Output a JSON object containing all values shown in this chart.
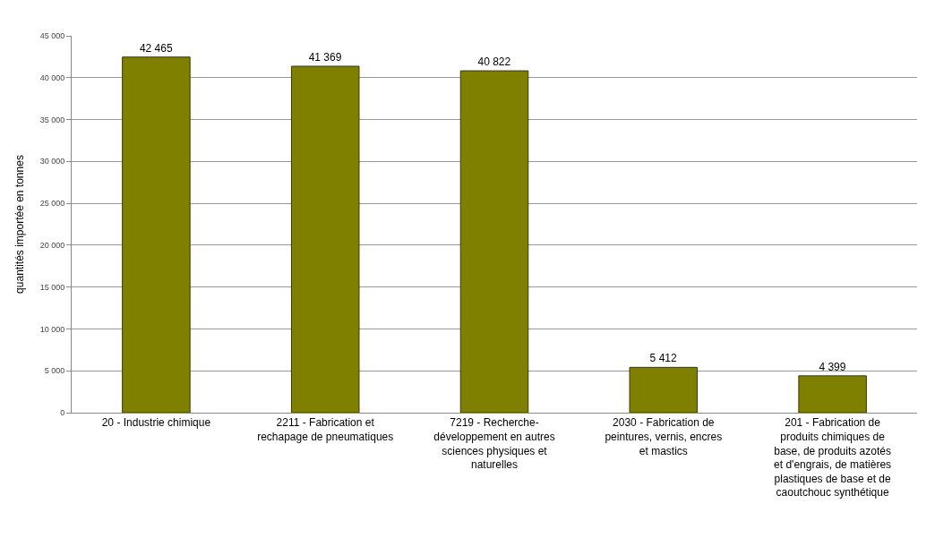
{
  "chart_data": {
    "type": "bar",
    "ylabel": "quantités importée en tonnes",
    "categories": [
      "20 - Industrie chimique",
      "2211 - Fabrication et rechapage de pneumatiques",
      "7219 - Recherche-développement en autres sciences physiques et naturelles",
      "2030 - Fabrication de peintures, vernis, encres et mastics",
      "201 - Fabrication de produits chimiques de base, de produits azotés et d'engrais, de matières plastiques de base et de caoutchouc synthétique"
    ],
    "values": [
      42465,
      41369,
      40822,
      5412,
      4399
    ],
    "value_labels": [
      "42 465",
      "41 369",
      "40 822",
      "5 412",
      "4 399"
    ],
    "color": "#808000",
    "ylim": [
      0,
      45000
    ],
    "yticks": [
      0,
      {
        "value": 5000,
        "label": "5 000"
      },
      {
        "value": 10000,
        "label": "10 000"
      },
      {
        "value": 15000,
        "label": "15 000"
      },
      {
        "value": 20000,
        "label": "20 000"
      },
      {
        "value": 25000,
        "label": "25 000"
      },
      {
        "value": 30000,
        "label": "30 000"
      },
      {
        "value": 35000,
        "label": "35 000"
      },
      {
        "value": 40000,
        "label": "40 000"
      },
      {
        "value": 45000,
        "label": "45 000"
      }
    ],
    "grid": "y",
    "legend": false
  }
}
